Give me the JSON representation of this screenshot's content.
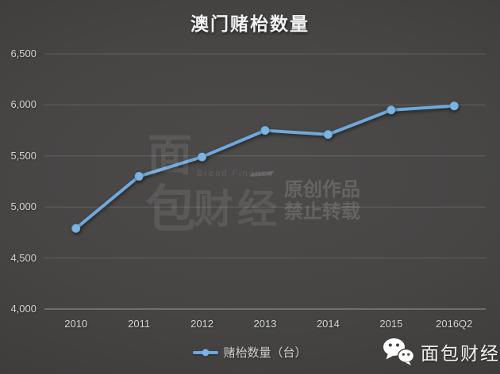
{
  "title": "澳门赌枱数量",
  "chart_data": {
    "type": "line",
    "title": "澳门赌枱数量",
    "categories": [
      "2010",
      "2011",
      "2012",
      "2013",
      "2014",
      "2015",
      "2016Q2"
    ],
    "series": [
      {
        "name": "赌枱数量（台）",
        "values": [
          4790,
          5300,
          5490,
          5750,
          5710,
          5950,
          5990
        ]
      }
    ],
    "ylim": [
      4000,
      6500
    ],
    "ytick_step": 500,
    "ytick_labels": [
      "4,000",
      "4,500",
      "5,000",
      "5,500",
      "6,000",
      "6,500"
    ],
    "grid": true,
    "legend_position": "bottom",
    "xlabel": "",
    "ylabel": ""
  },
  "legend": {
    "label": "赌枱数量（台）"
  },
  "watermark": {
    "logo_char_top": "面",
    "logo_char_bottom": "包",
    "logo_text_cn": "财经",
    "logo_text_en": "Bread Finance",
    "notice_line1": "原创作品",
    "notice_line2": "禁止转载"
  },
  "footer": {
    "brand": "面包财经"
  },
  "colors": {
    "line": "#6fa8dc",
    "marker": "#7db3e2",
    "axis_text": "#d4d4d4",
    "title_text": "#f2f2f2",
    "gridline": "rgba(255,255,255,0.15)",
    "axis_line": "rgba(255,255,255,0.45)",
    "background_center": "#4d4b4a",
    "background_edge": "#353535"
  }
}
